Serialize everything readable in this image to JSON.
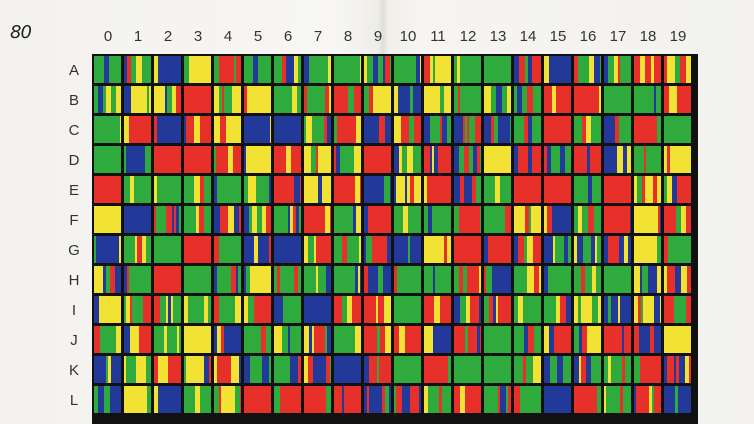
{
  "page_number": "80",
  "columns": [
    "0",
    "1",
    "2",
    "3",
    "4",
    "5",
    "6",
    "7",
    "8",
    "9",
    "10",
    "11",
    "12",
    "13",
    "14",
    "15",
    "16",
    "17",
    "18",
    "19"
  ],
  "rows": [
    "A",
    "B",
    "C",
    "D",
    "E",
    "F",
    "G",
    "H",
    "I",
    "J",
    "K",
    "L"
  ],
  "palette": {
    "R": "#e8302a",
    "G": "#2faa3c",
    "B": "#23399a",
    "Y": "#f2e234"
  },
  "colors": {
    "grid_line": "#111111",
    "page": "#f3f2ee",
    "label": "#333333"
  }
}
